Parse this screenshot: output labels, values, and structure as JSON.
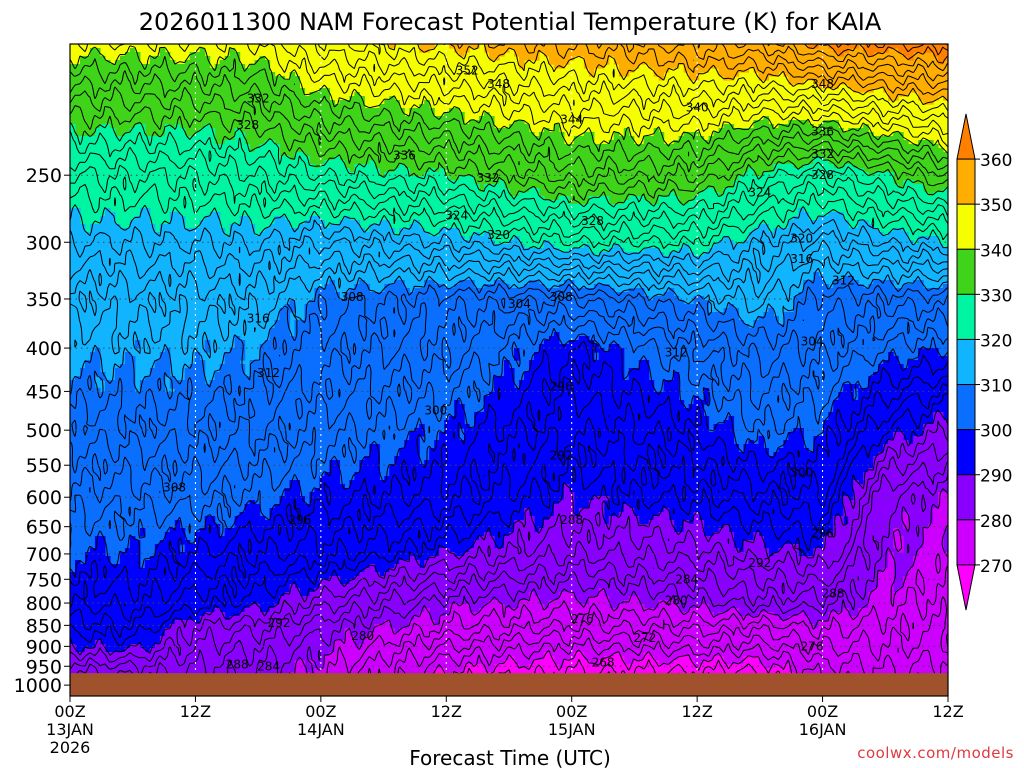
{
  "chart_data": {
    "type": "time-height-contour",
    "title": "2026011300 NAM Forecast Potential Temperature (K) for KAIA",
    "xlabel": "Forecast Time (UTC)",
    "ylabel": "",
    "x_hours_range": [
      0,
      84
    ],
    "y_range_hpa": [
      1030,
      175
    ],
    "y_ticks_hpa": [
      250,
      300,
      350,
      400,
      450,
      500,
      550,
      600,
      650,
      700,
      750,
      800,
      850,
      900,
      950,
      1000
    ],
    "x_ticks": [
      {
        "hour": 0,
        "time": "00Z",
        "day": "13JAN",
        "year": "2026"
      },
      {
        "hour": 12,
        "time": "12Z",
        "day": "",
        "year": ""
      },
      {
        "hour": 24,
        "time": "00Z",
        "day": "14JAN",
        "year": ""
      },
      {
        "hour": 36,
        "time": "12Z",
        "day": "",
        "year": ""
      },
      {
        "hour": 48,
        "time": "00Z",
        "day": "15JAN",
        "year": ""
      },
      {
        "hour": 60,
        "time": "12Z",
        "day": "",
        "year": ""
      },
      {
        "hour": 72,
        "time": "00Z",
        "day": "16JAN",
        "year": ""
      },
      {
        "hour": 84,
        "time": "12Z",
        "day": "",
        "year": ""
      }
    ],
    "surface_pressure_hpa": 968,
    "surface_color": "#a0522d",
    "colorbar": {
      "levels": [
        270,
        280,
        290,
        300,
        310,
        320,
        330,
        340,
        350,
        360
      ],
      "colors": [
        "#ff00ff",
        "#cd00ff",
        "#8a00ff",
        "#0000ff",
        "#0a6fff",
        "#11b4ff",
        "#00f5a3",
        "#3fd41a",
        "#f5ff00",
        "#ffad00",
        "#ff7f00"
      ]
    },
    "contour_interval_k": 2,
    "theta_anchor_levels_hpa": [
      960,
      900,
      850,
      800,
      700,
      600,
      500,
      400,
      350,
      300,
      250,
      200
    ],
    "theta_columns": [
      {
        "hour": 0,
        "theta": [
          284,
          290,
          293,
          296,
          300,
          303,
          307,
          311,
          313,
          318,
          324,
          335
        ]
      },
      {
        "hour": 6,
        "theta": [
          285,
          291,
          294,
          297,
          300,
          303,
          307,
          311,
          313,
          318,
          324,
          335
        ]
      },
      {
        "hour": 12,
        "theta": [
          284,
          286,
          288,
          293,
          298,
          303,
          307,
          311,
          313,
          318,
          324,
          335
        ]
      },
      {
        "hour": 18,
        "theta": [
          282,
          284,
          287,
          291,
          296,
          301,
          306,
          310,
          313,
          318,
          326,
          336
        ]
      },
      {
        "hour": 24,
        "theta": [
          279,
          281,
          283,
          287,
          295,
          299,
          303,
          307,
          309,
          316,
          328,
          340
        ]
      },
      {
        "hour": 36,
        "theta": [
          270,
          274,
          278,
          281,
          290,
          297,
          300,
          305,
          307,
          318,
          330,
          343
        ]
      },
      {
        "hour": 48,
        "theta": [
          268,
          272,
          276,
          279,
          286,
          290,
          294,
          298,
          306,
          322,
          335,
          346
        ]
      },
      {
        "hour": 60,
        "theta": [
          268,
          273,
          277,
          281,
          287,
          293,
          298,
          304,
          310,
          322,
          334,
          347
        ]
      },
      {
        "hour": 66,
        "theta": [
          268,
          273,
          277,
          283,
          289,
          295,
          302,
          307,
          313,
          318,
          329,
          346
        ]
      },
      {
        "hour": 72,
        "theta": [
          273,
          276,
          279,
          283,
          290,
          296,
          300,
          305,
          307,
          315,
          326,
          348
        ]
      },
      {
        "hour": 78,
        "theta": [
          274,
          276,
          277,
          279,
          281,
          282,
          292,
          302,
          307,
          318,
          330,
          350
        ]
      },
      {
        "hour": 84,
        "theta": [
          273,
          275,
          276,
          277,
          279,
          280,
          288,
          300,
          307,
          320,
          334,
          352
        ]
      }
    ],
    "contour_labels": [
      {
        "hour": 38,
        "hpa": 188,
        "text": "352"
      },
      {
        "hour": 41,
        "hpa": 195,
        "text": "348"
      },
      {
        "hour": 72,
        "hpa": 195,
        "text": "348"
      },
      {
        "hour": 48,
        "hpa": 215,
        "text": "344"
      },
      {
        "hour": 60,
        "hpa": 208,
        "text": "340"
      },
      {
        "hour": 18,
        "hpa": 203,
        "text": "332"
      },
      {
        "hour": 17,
        "hpa": 218,
        "text": "328"
      },
      {
        "hour": 32,
        "hpa": 237,
        "text": "336"
      },
      {
        "hour": 40,
        "hpa": 252,
        "text": "332"
      },
      {
        "hour": 72,
        "hpa": 222,
        "text": "336"
      },
      {
        "hour": 72,
        "hpa": 236,
        "text": "332"
      },
      {
        "hour": 72,
        "hpa": 250,
        "text": "328"
      },
      {
        "hour": 66,
        "hpa": 262,
        "text": "324"
      },
      {
        "hour": 37,
        "hpa": 279,
        "text": "324"
      },
      {
        "hour": 41,
        "hpa": 294,
        "text": "320"
      },
      {
        "hour": 50,
        "hpa": 283,
        "text": "328"
      },
      {
        "hour": 70,
        "hpa": 297,
        "text": "320"
      },
      {
        "hour": 70,
        "hpa": 314,
        "text": "316"
      },
      {
        "hour": 74,
        "hpa": 333,
        "text": "312"
      },
      {
        "hour": 27,
        "hpa": 348,
        "text": "308"
      },
      {
        "hour": 43,
        "hpa": 355,
        "text": "304"
      },
      {
        "hour": 47,
        "hpa": 348,
        "text": "308"
      },
      {
        "hour": 18,
        "hpa": 369,
        "text": "316"
      },
      {
        "hour": 58,
        "hpa": 405,
        "text": "312"
      },
      {
        "hour": 71,
        "hpa": 393,
        "text": "304"
      },
      {
        "hour": 19,
        "hpa": 428,
        "text": "312"
      },
      {
        "hour": 35,
        "hpa": 474,
        "text": "300"
      },
      {
        "hour": 47,
        "hpa": 444,
        "text": "296"
      },
      {
        "hour": 47,
        "hpa": 536,
        "text": "292"
      },
      {
        "hour": 70,
        "hpa": 561,
        "text": "300"
      },
      {
        "hour": 10,
        "hpa": 584,
        "text": "308"
      },
      {
        "hour": 22,
        "hpa": 638,
        "text": "296"
      },
      {
        "hour": 48,
        "hpa": 638,
        "text": "288"
      },
      {
        "hour": 72,
        "hpa": 662,
        "text": "296"
      },
      {
        "hour": 66,
        "hpa": 717,
        "text": "292"
      },
      {
        "hour": 59,
        "hpa": 750,
        "text": "284"
      },
      {
        "hour": 73,
        "hpa": 780,
        "text": "288"
      },
      {
        "hour": 58,
        "hpa": 795,
        "text": "280"
      },
      {
        "hour": 20,
        "hpa": 845,
        "text": "292"
      },
      {
        "hour": 49,
        "hpa": 835,
        "text": "276"
      },
      {
        "hour": 28,
        "hpa": 875,
        "text": "280"
      },
      {
        "hour": 55,
        "hpa": 880,
        "text": "272"
      },
      {
        "hour": 71,
        "hpa": 900,
        "text": "276"
      },
      {
        "hour": 51,
        "hpa": 940,
        "text": "268"
      },
      {
        "hour": 16,
        "hpa": 945,
        "text": "288"
      },
      {
        "hour": 19,
        "hpa": 950,
        "text": "284"
      }
    ]
  },
  "credit": "coolwx.com/models"
}
